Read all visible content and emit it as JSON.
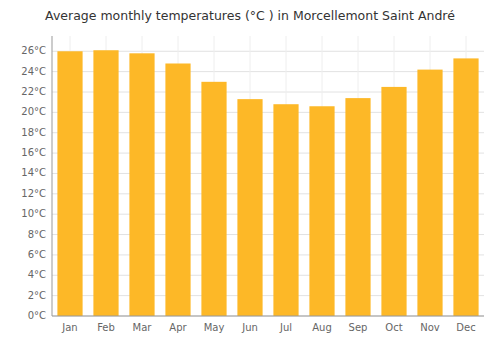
{
  "chart_data": {
    "type": "bar",
    "title": "Average monthly temperatures (°C ) in Morcellemont Saint André",
    "categories": [
      "Jan",
      "Feb",
      "Mar",
      "Apr",
      "May",
      "Jun",
      "Jul",
      "Aug",
      "Sep",
      "Oct",
      "Nov",
      "Dec"
    ],
    "values": [
      26.0,
      26.1,
      25.8,
      24.8,
      23.0,
      21.3,
      20.8,
      20.6,
      21.4,
      22.5,
      24.2,
      25.3
    ],
    "color": "#FDB827",
    "ylim": [
      0,
      27.5
    ],
    "yticks": [
      {
        "value": 0,
        "label": "0°C"
      },
      {
        "value": 2,
        "label": "2°C"
      },
      {
        "value": 4,
        "label": "4°C"
      },
      {
        "value": 6,
        "label": "6°C"
      },
      {
        "value": 8,
        "label": "8°C"
      },
      {
        "value": 10,
        "label": "10°C"
      },
      {
        "value": 12,
        "label": "12°C"
      },
      {
        "value": 14,
        "label": "14°C"
      },
      {
        "value": 16,
        "label": "16°C"
      },
      {
        "value": 18,
        "label": "18°C"
      },
      {
        "value": 20,
        "label": "20°C"
      },
      {
        "value": 22,
        "label": "22°C"
      },
      {
        "value": 24,
        "label": "24°C"
      },
      {
        "value": 26,
        "label": "26°C"
      }
    ],
    "grid": true
  }
}
